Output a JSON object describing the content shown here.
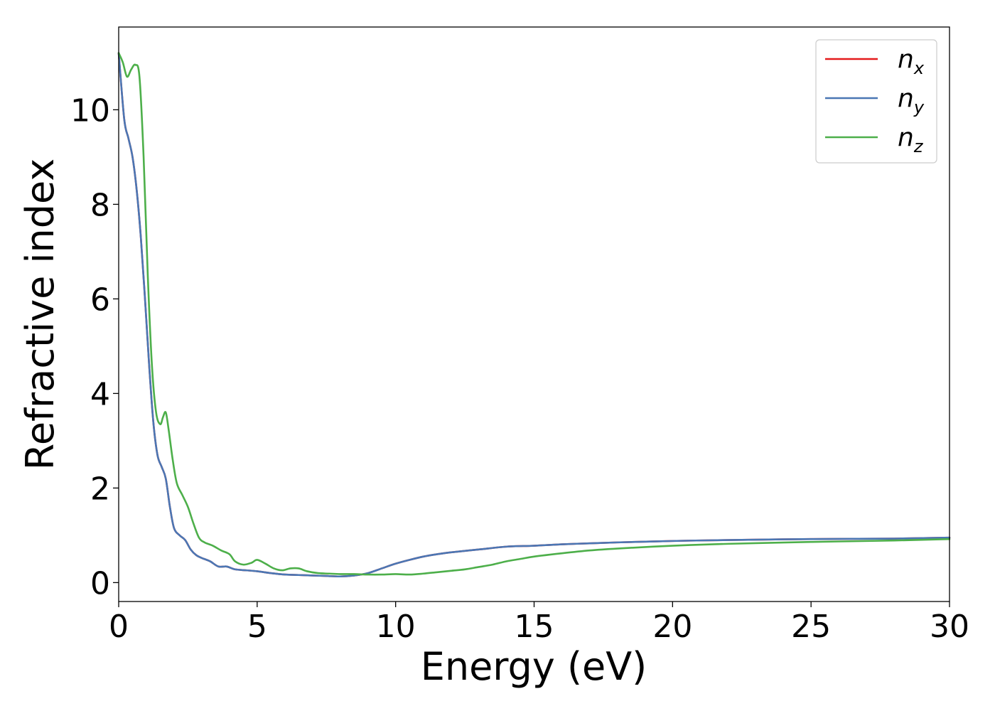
{
  "chart_data": {
    "type": "line",
    "title": "",
    "xlabel": "Energy (eV)",
    "ylabel": "Refractive index",
    "xlim": [
      0,
      30
    ],
    "ylim": [
      -0.4,
      11.75
    ],
    "xticks": [
      0,
      5,
      10,
      15,
      20,
      25,
      30
    ],
    "xtick_labels": [
      "0",
      "5",
      "10",
      "15",
      "20",
      "25",
      "30"
    ],
    "yticks": [
      0,
      2,
      4,
      6,
      8,
      10
    ],
    "ytick_labels": [
      "0",
      "2",
      "4",
      "6",
      "8",
      "10"
    ],
    "grid": false,
    "legend_position": "top-right",
    "series": [
      {
        "name": "n_x",
        "label_main": "n",
        "label_sub": "x",
        "color": "#e41a1c",
        "x": [
          0,
          0.2,
          0.35,
          0.5,
          0.65,
          0.8,
          0.95,
          1.1,
          1.25,
          1.4,
          1.55,
          1.7,
          1.85,
          2.0,
          2.2,
          2.4,
          2.6,
          2.8,
          3.0,
          3.3,
          3.6,
          3.9,
          4.2,
          4.6,
          5.0,
          5.5,
          6.0,
          6.5,
          7.0,
          7.5,
          8.0,
          8.5,
          9.0,
          9.5,
          10.0,
          10.5,
          11.0,
          11.5,
          12.0,
          13.0,
          14.0,
          15.0,
          16.0,
          17.0,
          18.0,
          20.0,
          22.0,
          25.0,
          28.0,
          30.0
        ],
        "y": [
          11.2,
          9.8,
          9.4,
          9.0,
          8.3,
          7.3,
          6.0,
          4.6,
          3.4,
          2.7,
          2.45,
          2.2,
          1.6,
          1.15,
          1.0,
          0.9,
          0.7,
          0.58,
          0.52,
          0.45,
          0.34,
          0.34,
          0.28,
          0.26,
          0.24,
          0.2,
          0.17,
          0.16,
          0.15,
          0.14,
          0.13,
          0.15,
          0.2,
          0.3,
          0.4,
          0.48,
          0.55,
          0.6,
          0.64,
          0.7,
          0.76,
          0.78,
          0.81,
          0.83,
          0.85,
          0.88,
          0.9,
          0.92,
          0.93,
          0.95
        ]
      },
      {
        "name": "n_y",
        "label_main": "n",
        "label_sub": "y",
        "color": "#4a77b4",
        "x": [
          0,
          0.2,
          0.35,
          0.5,
          0.65,
          0.8,
          0.95,
          1.1,
          1.25,
          1.4,
          1.55,
          1.7,
          1.85,
          2.0,
          2.2,
          2.4,
          2.6,
          2.8,
          3.0,
          3.3,
          3.6,
          3.9,
          4.2,
          4.6,
          5.0,
          5.5,
          6.0,
          6.5,
          7.0,
          7.5,
          8.0,
          8.5,
          9.0,
          9.5,
          10.0,
          10.5,
          11.0,
          11.5,
          12.0,
          13.0,
          14.0,
          15.0,
          16.0,
          17.0,
          18.0,
          20.0,
          22.0,
          25.0,
          28.0,
          30.0
        ],
        "y": [
          11.2,
          9.8,
          9.4,
          9.0,
          8.3,
          7.3,
          6.0,
          4.6,
          3.4,
          2.7,
          2.45,
          2.2,
          1.6,
          1.15,
          1.0,
          0.9,
          0.7,
          0.58,
          0.52,
          0.45,
          0.34,
          0.34,
          0.28,
          0.26,
          0.24,
          0.2,
          0.17,
          0.16,
          0.15,
          0.14,
          0.13,
          0.15,
          0.2,
          0.3,
          0.4,
          0.48,
          0.55,
          0.6,
          0.64,
          0.7,
          0.76,
          0.78,
          0.81,
          0.83,
          0.85,
          0.88,
          0.9,
          0.92,
          0.93,
          0.95
        ]
      },
      {
        "name": "n_z",
        "label_main": "n",
        "label_sub": "z",
        "color": "#4daf4a",
        "x": [
          0,
          0.15,
          0.3,
          0.45,
          0.6,
          0.75,
          0.9,
          1.05,
          1.2,
          1.35,
          1.5,
          1.6,
          1.7,
          1.8,
          1.95,
          2.1,
          2.3,
          2.5,
          2.7,
          2.9,
          3.1,
          3.4,
          3.7,
          4.0,
          4.2,
          4.5,
          4.8,
          5.0,
          5.3,
          5.6,
          5.9,
          6.2,
          6.5,
          6.8,
          7.2,
          7.6,
          8.0,
          8.5,
          9.0,
          9.5,
          10.0,
          10.5,
          11.0,
          11.5,
          12.0,
          12.5,
          13.0,
          13.5,
          14.0,
          14.5,
          15.0,
          16.0,
          17.0,
          18.0,
          20.0,
          22.0,
          25.0,
          28.0,
          30.0
        ],
        "y": [
          11.2,
          11.0,
          10.7,
          10.85,
          10.95,
          10.7,
          9.0,
          6.5,
          4.6,
          3.6,
          3.35,
          3.5,
          3.6,
          3.25,
          2.6,
          2.1,
          1.85,
          1.6,
          1.25,
          0.95,
          0.85,
          0.78,
          0.68,
          0.6,
          0.45,
          0.38,
          0.42,
          0.48,
          0.4,
          0.3,
          0.26,
          0.3,
          0.3,
          0.24,
          0.2,
          0.19,
          0.18,
          0.18,
          0.17,
          0.17,
          0.18,
          0.17,
          0.19,
          0.22,
          0.25,
          0.28,
          0.33,
          0.38,
          0.45,
          0.5,
          0.55,
          0.62,
          0.68,
          0.72,
          0.78,
          0.82,
          0.86,
          0.89,
          0.92
        ]
      }
    ]
  }
}
